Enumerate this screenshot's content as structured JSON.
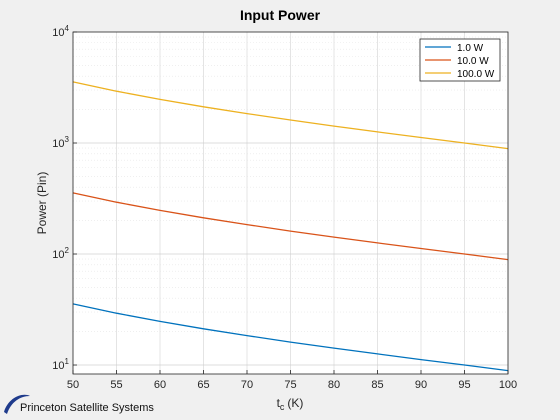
{
  "footer": {
    "brand": "Princeton Satellite Systems"
  },
  "chart_data": {
    "type": "line",
    "title": "Input Power",
    "xlabel_main": "t",
    "xlabel_sub": "c",
    "xlabel_unit": "(K)",
    "ylabel": "Power (Pin)",
    "xlim": [
      50,
      100
    ],
    "ylim": [
      8.3,
      10000
    ],
    "yscale": "log",
    "grid": true,
    "legend_position": "top-right",
    "x_ticks": [
      50,
      55,
      60,
      65,
      70,
      75,
      80,
      85,
      90,
      95,
      100
    ],
    "y_ticks": [
      {
        "base": "10",
        "exp": "1",
        "value": 10
      },
      {
        "base": "10",
        "exp": "2",
        "value": 100
      },
      {
        "base": "10",
        "exp": "3",
        "value": 1000
      },
      {
        "base": "10",
        "exp": "4",
        "value": 10000
      }
    ],
    "x": [
      50,
      55,
      60,
      65,
      70,
      75,
      80,
      85,
      90,
      95,
      100
    ],
    "series": [
      {
        "name": "1.0 W",
        "color": "#0072BD",
        "values": [
          35.5,
          29.3,
          24.7,
          21.2,
          18.4,
          16.1,
          14.2,
          12.6,
          11.2,
          10.0,
          8.9
        ]
      },
      {
        "name": "10.0 W",
        "color": "#D95319",
        "values": [
          355,
          293,
          247,
          212,
          184,
          161,
          142,
          126,
          112,
          100,
          89
        ]
      },
      {
        "name": "100.0 W",
        "color": "#EDB120",
        "values": [
          3550,
          2930,
          2470,
          2120,
          1840,
          1610,
          1420,
          1260,
          1120,
          1000,
          890
        ]
      }
    ]
  }
}
